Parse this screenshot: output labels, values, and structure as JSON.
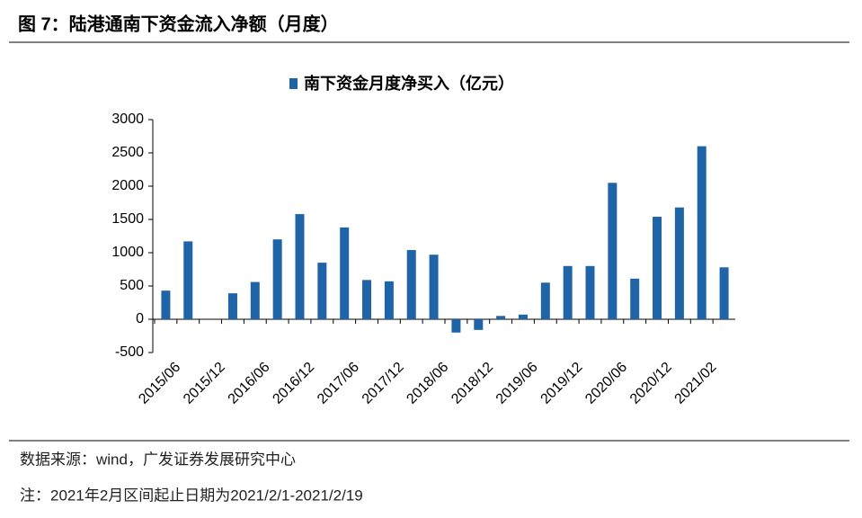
{
  "header": {
    "title": "图 7：陆港通南下资金流入净额（月度）"
  },
  "chart_data": {
    "type": "bar",
    "series": [
      {
        "name": "南下资金月度净买入（亿元）",
        "color": "#1f64a6",
        "values": [
          430,
          1170,
          0,
          390,
          560,
          1200,
          1580,
          850,
          1380,
          590,
          570,
          1040,
          970,
          -200,
          -160,
          50,
          70,
          550,
          800,
          800,
          2050,
          610,
          1540,
          1680,
          2600,
          780
        ]
      }
    ],
    "categories": [
      "2015/06",
      null,
      "2015/12",
      null,
      "2016/06",
      null,
      "2016/12",
      null,
      "2017/06",
      null,
      "2017/12",
      null,
      "2018/06",
      null,
      "2018/12",
      null,
      "2019/06",
      null,
      "2019/12",
      null,
      "2020/06",
      null,
      "2020/12",
      null,
      "2021/02",
      null
    ],
    "ylim": [
      -500,
      3000
    ],
    "yticks": [
      -500,
      0,
      500,
      1000,
      1500,
      2000,
      2500,
      3000
    ],
    "legend": "top"
  },
  "footer": {
    "source": "数据来源：wind，广发证券发展研究中心",
    "note": "注：2021年2月区间起止日期为2021/2/1-2021/2/19"
  }
}
